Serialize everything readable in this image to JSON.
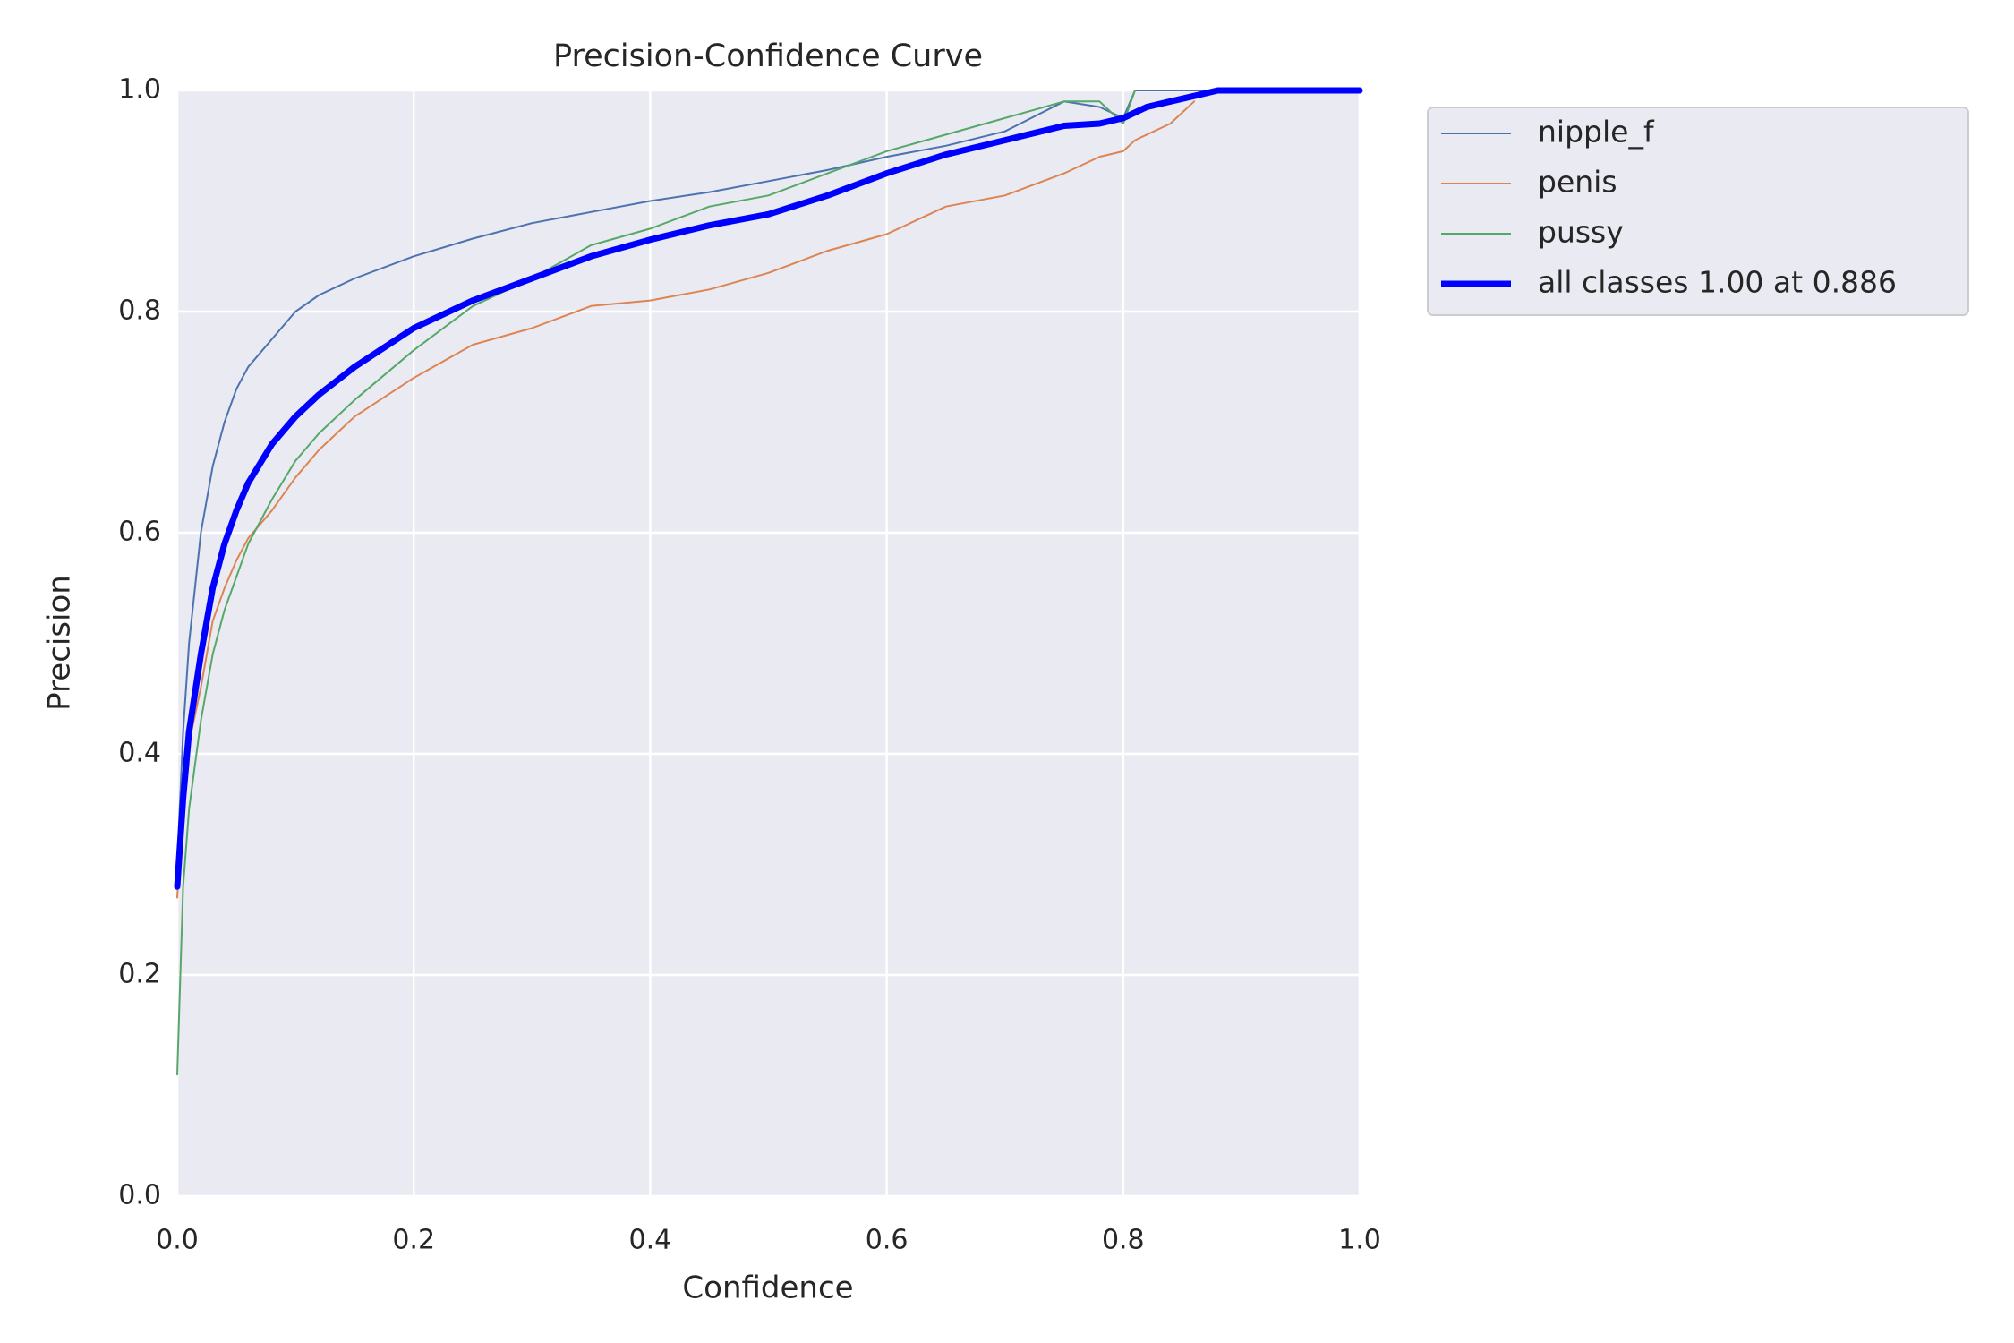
{
  "chart_data": {
    "type": "line",
    "title": "Precision-Confidence Curve",
    "x_label": "Confidence",
    "y_label": "Precision",
    "x": [
      0,
      0.005,
      0.01,
      0.02,
      0.03,
      0.04,
      0.05,
      0.06,
      0.08,
      0.1,
      0.12,
      0.15,
      0.2,
      0.25,
      0.3,
      0.35,
      0.4,
      0.45,
      0.5,
      0.55,
      0.6,
      0.65,
      0.7,
      0.75,
      0.78,
      0.8,
      0.81,
      0.82,
      0.84,
      0.86,
      0.88,
      0.9,
      0.95,
      1.0
    ],
    "series": [
      {
        "name": "nipple_f",
        "color": "#4c72b0",
        "line_width": 2,
        "values": [
          0.3,
          0.42,
          0.5,
          0.6,
          0.66,
          0.7,
          0.73,
          0.75,
          0.775,
          0.8,
          0.815,
          0.83,
          0.85,
          0.866,
          0.88,
          0.89,
          0.9,
          0.908,
          0.918,
          0.928,
          0.94,
          0.95,
          0.963,
          0.99,
          0.985,
          0.975,
          1.0,
          1.0,
          1.0,
          1.0,
          1.0,
          1.0,
          1.0,
          1.0
        ]
      },
      {
        "name": "penis",
        "color": "#dd8452",
        "line_width": 2,
        "values": [
          0.27,
          0.36,
          0.41,
          0.46,
          0.52,
          0.55,
          0.575,
          0.595,
          0.62,
          0.65,
          0.675,
          0.705,
          0.74,
          0.77,
          0.785,
          0.805,
          0.81,
          0.82,
          0.835,
          0.855,
          0.87,
          0.895,
          0.905,
          0.925,
          0.94,
          0.945,
          0.955,
          0.96,
          0.97,
          0.99,
          null,
          null,
          null,
          null
        ]
      },
      {
        "name": "pussy",
        "color": "#55a868",
        "line_width": 2,
        "values": [
          0.11,
          0.28,
          0.35,
          0.43,
          0.49,
          0.53,
          0.56,
          0.59,
          0.63,
          0.665,
          0.69,
          0.72,
          0.765,
          0.805,
          0.83,
          0.86,
          0.875,
          0.895,
          0.905,
          0.925,
          0.945,
          0.96,
          0.975,
          0.99,
          0.99,
          0.97,
          1.0,
          null,
          null,
          null,
          null,
          null,
          null,
          null
        ]
      },
      {
        "name": "all classes 1.00 at 0.886",
        "color": "#0000ff",
        "line_width": 7,
        "values": [
          0.28,
          0.36,
          0.42,
          0.49,
          0.55,
          0.59,
          0.62,
          0.645,
          0.68,
          0.705,
          0.725,
          0.75,
          0.785,
          0.81,
          0.83,
          0.85,
          0.865,
          0.878,
          0.888,
          0.905,
          0.925,
          0.942,
          0.955,
          0.968,
          0.97,
          0.975,
          0.98,
          0.985,
          0.99,
          0.995,
          1.0,
          1.0,
          1.0,
          1.0
        ]
      }
    ],
    "xlim": [
      0,
      1
    ],
    "ylim": [
      0,
      1
    ],
    "xticks": [
      {
        "value": 0,
        "label": "0.0"
      },
      0.2,
      0.4,
      0.6,
      0.8,
      {
        "value": 1,
        "label": "1.0"
      }
    ],
    "yticks": [
      {
        "value": 0,
        "label": "0.0"
      },
      0.2,
      0.4,
      0.6,
      0.8,
      {
        "value": 1,
        "label": "1.0"
      }
    ],
    "grid": true,
    "legend": "outside-upper-right"
  }
}
